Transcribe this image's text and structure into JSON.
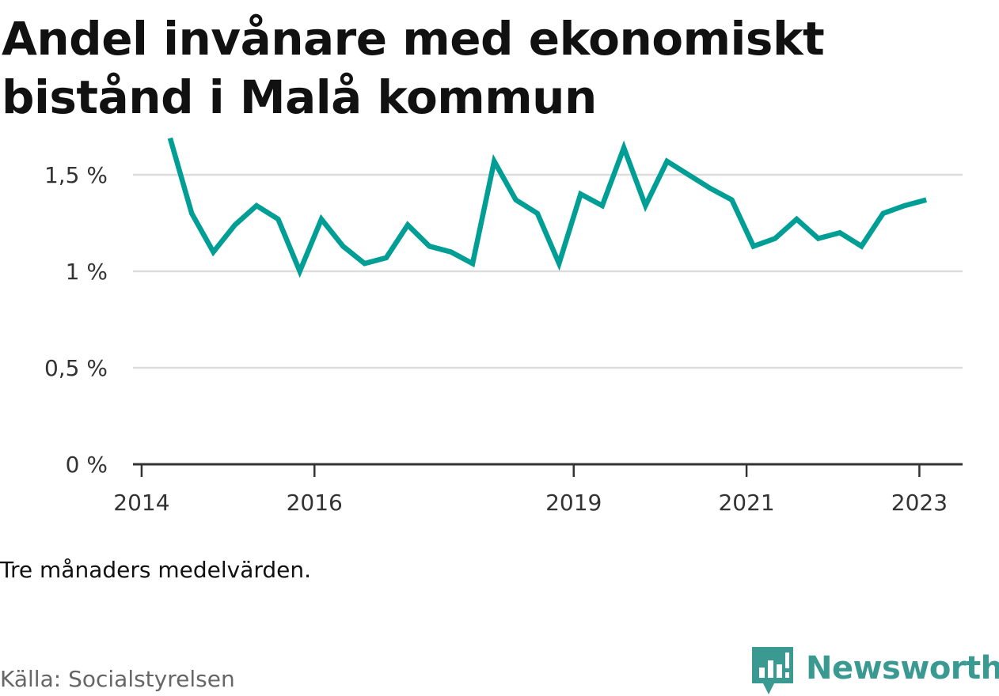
{
  "title": "Andel invånare med ekonomiskt bistånd i Malå kommun",
  "note": "Tre månaders medelvärden.",
  "source": "Källa: Socialstyrelsen",
  "logo": {
    "text": "Newsworthy",
    "icon": "newsworthy-logo-icon",
    "color": "#3a9a92"
  },
  "chart_data": {
    "type": "line",
    "title": "Andel invånare med ekonomiskt bistånd i Malå kommun",
    "xlabel": "",
    "ylabel": "",
    "x_tick_labels": [
      "2014",
      "2016",
      "2019",
      "2021",
      "2023"
    ],
    "x_tick_values": [
      2014.0,
      2016.0,
      2019.0,
      2021.0,
      2023.0
    ],
    "y_tick_labels": [
      "0 %",
      "0,5 %",
      "1 %",
      "1,5 %"
    ],
    "y_tick_values": [
      0,
      0.5,
      1.0,
      1.5
    ],
    "xlim": [
      2013.9,
      2023.5
    ],
    "ylim": [
      0,
      1.75
    ],
    "grid": true,
    "legend": "none",
    "series_color": "#009e94",
    "series": [
      {
        "values": [
          {
            "x": 2014.33,
            "y": 1.69
          },
          {
            "x": 2014.58,
            "y": 1.3
          },
          {
            "x": 2014.83,
            "y": 1.1
          },
          {
            "x": 2015.08,
            "y": 1.24
          },
          {
            "x": 2015.33,
            "y": 1.34
          },
          {
            "x": 2015.58,
            "y": 1.27
          },
          {
            "x": 2015.83,
            "y": 1.0
          },
          {
            "x": 2016.08,
            "y": 1.27
          },
          {
            "x": 2016.33,
            "y": 1.13
          },
          {
            "x": 2016.58,
            "y": 1.04
          },
          {
            "x": 2016.83,
            "y": 1.07
          },
          {
            "x": 2017.08,
            "y": 1.24
          },
          {
            "x": 2017.33,
            "y": 1.13
          },
          {
            "x": 2017.58,
            "y": 1.1
          },
          {
            "x": 2017.83,
            "y": 1.04
          },
          {
            "x": 2018.08,
            "y": 1.57
          },
          {
            "x": 2018.33,
            "y": 1.37
          },
          {
            "x": 2018.58,
            "y": 1.3
          },
          {
            "x": 2018.83,
            "y": 1.04
          },
          {
            "x": 2019.08,
            "y": 1.4
          },
          {
            "x": 2019.33,
            "y": 1.34
          },
          {
            "x": 2019.58,
            "y": 1.64
          },
          {
            "x": 2019.83,
            "y": 1.34
          },
          {
            "x": 2020.08,
            "y": 1.57
          },
          {
            "x": 2020.33,
            "y": 1.5
          },
          {
            "x": 2020.58,
            "y": 1.43
          },
          {
            "x": 2020.83,
            "y": 1.37
          },
          {
            "x": 2021.08,
            "y": 1.13
          },
          {
            "x": 2021.33,
            "y": 1.17
          },
          {
            "x": 2021.58,
            "y": 1.27
          },
          {
            "x": 2021.83,
            "y": 1.17
          },
          {
            "x": 2022.08,
            "y": 1.2
          },
          {
            "x": 2022.33,
            "y": 1.13
          },
          {
            "x": 2022.58,
            "y": 1.3
          },
          {
            "x": 2022.83,
            "y": 1.34
          },
          {
            "x": 2023.08,
            "y": 1.37
          }
        ]
      }
    ]
  }
}
